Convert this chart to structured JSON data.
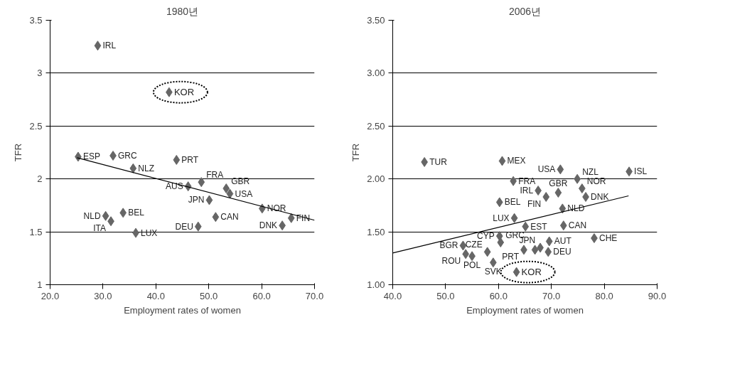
{
  "chart_data": [
    {
      "type": "scatter",
      "title": "1980년",
      "xlabel": "Employment rates of women",
      "ylabel": "TFR",
      "xlim": [
        20,
        70
      ],
      "ylim": [
        1,
        3.5
      ],
      "xticks": [
        {
          "value": 20,
          "label": "20.0"
        },
        {
          "value": 30,
          "label": "30.0"
        },
        {
          "value": 40,
          "label": "40.0"
        },
        {
          "value": 50,
          "label": "50.0"
        },
        {
          "value": 60,
          "label": "60.0"
        },
        {
          "value": 70,
          "label": "70.0"
        }
      ],
      "yticks": [
        1,
        1.5,
        2,
        2.5,
        3,
        3.5
      ],
      "grid": "y",
      "series": [
        {
          "marker": "diamond",
          "color": "#666666",
          "x": [
            29.0,
            25.3,
            31.9,
            35.7,
            43.9,
            46.1,
            48.6,
            53.3,
            54.0,
            50.1,
            51.3,
            48.0,
            60.1,
            65.6,
            63.9,
            30.5,
            31.5,
            33.8,
            36.2,
            42.5
          ],
          "values": [
            3.26,
            2.21,
            2.22,
            2.1,
            2.18,
            1.93,
            1.97,
            1.91,
            1.86,
            1.8,
            1.64,
            1.55,
            1.72,
            1.63,
            1.56,
            1.65,
            1.6,
            1.68,
            1.49,
            2.82
          ],
          "value_labels": [
            "IRL",
            "ESP",
            "GRC",
            "NLZ",
            "PRT",
            "AUS",
            "FRA",
            "GBR",
            "USA",
            "JPN",
            "CAN",
            "DEU",
            "NOR",
            "FIN",
            "DNK",
            "NLD",
            "ITA",
            "BEL",
            "LUX",
            null
          ]
        },
        {
          "type": "line",
          "color": "#000000",
          "x": [
            25.1,
            70
          ],
          "values": [
            2.2,
            1.61
          ]
        }
      ],
      "annotations": [
        {
          "text": "KOR",
          "x": 42.5,
          "y": 2.82
        }
      ]
    },
    {
      "type": "scatter",
      "title": "2006년",
      "xlabel": "Employment rates of women",
      "ylabel": "TFR",
      "xlim": [
        40,
        90
      ],
      "ylim": [
        1,
        3.5
      ],
      "xticks": [
        {
          "value": 40,
          "label": "40.0"
        },
        {
          "value": 50,
          "label": "50.0"
        },
        {
          "value": 60,
          "label": "60.0"
        },
        {
          "value": 70,
          "label": "70.0"
        },
        {
          "value": 80,
          "label": "80.0"
        },
        {
          "value": 90,
          "label": "90.0"
        }
      ],
      "yticks": [
        {
          "value": 1,
          "label": "1.00"
        },
        {
          "value": 1.5,
          "label": "1.50"
        },
        {
          "value": 2,
          "label": "2.00"
        },
        {
          "value": 2.5,
          "label": "2.50"
        },
        {
          "value": 3,
          "label": "3.00"
        },
        {
          "value": 3.5,
          "label": "3.50"
        }
      ],
      "grid": "y",
      "series": [
        {
          "marker": "diamond",
          "color": "#666666",
          "x": [
            46.0,
            60.7,
            71.7,
            84.7,
            62.8,
            74.9,
            75.8,
            67.5,
            71.3,
            69.0,
            76.5,
            60.2,
            72.1,
            63.0,
            65.1,
            72.3,
            60.2,
            60.4,
            69.6,
            78.1,
            64.8,
            66.9,
            69.4,
            57.9,
            53.3,
            53.8,
            55.0,
            59.0,
            67.9,
            63.4
          ],
          "values": [
            2.16,
            2.17,
            2.09,
            2.07,
            1.98,
            2.0,
            1.91,
            1.89,
            1.87,
            1.83,
            1.83,
            1.78,
            1.72,
            1.63,
            1.55,
            1.56,
            1.46,
            1.4,
            1.41,
            1.44,
            1.33,
            1.33,
            1.31,
            1.31,
            1.37,
            1.29,
            1.27,
            1.21,
            1.35,
            1.12
          ],
          "value_labels": [
            "TUR",
            "MEX",
            "USA",
            "ISL",
            "FRA",
            "NZL",
            "NOR",
            "IRL",
            "GBR",
            "FIN",
            "DNK",
            "BEL",
            "NLD",
            "LUX",
            "EST",
            "CAN",
            "CYP",
            "GRC",
            "AUT",
            "CHE",
            "PRT",
            null,
            "DEU",
            "CZE",
            "BGR",
            "ROU",
            "POL",
            "SVK",
            "JPN",
            null
          ]
        },
        {
          "type": "line",
          "color": "#000000",
          "x": [
            40,
            84.6
          ],
          "values": [
            1.3,
            1.84
          ]
        }
      ],
      "annotations": [
        {
          "text": "KOR",
          "x": 63.4,
          "y": 1.12
        }
      ]
    }
  ]
}
